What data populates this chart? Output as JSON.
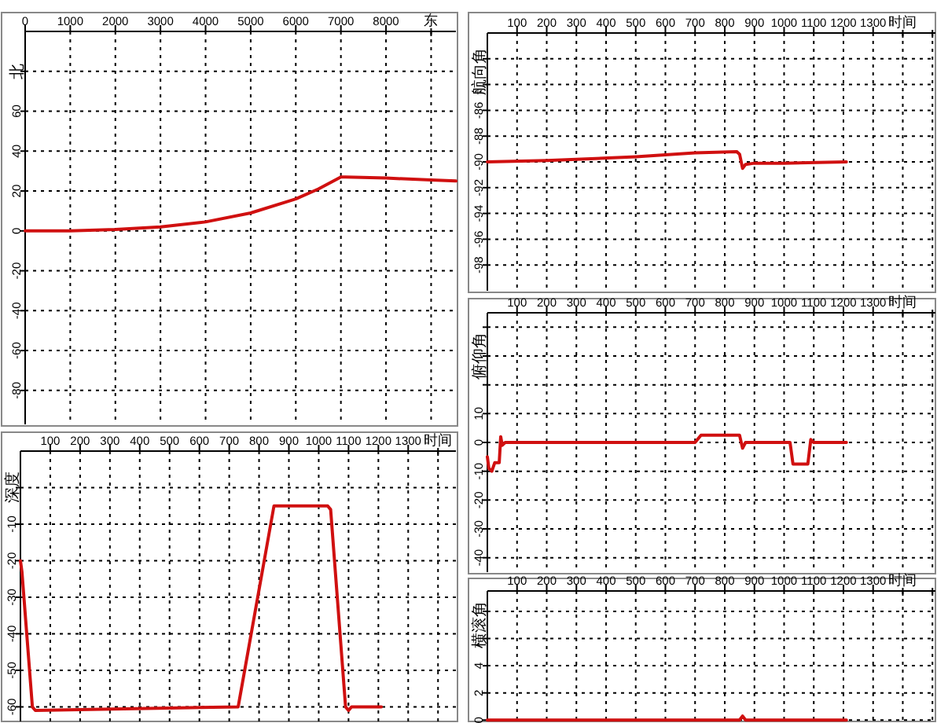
{
  "chart_data": [
    {
      "type": "line",
      "xlabel": "东",
      "ylabel": "北",
      "xlim": [
        0,
        9550
      ],
      "ylim": [
        -97,
        100
      ],
      "xticks": [
        0,
        1000,
        2000,
        3000,
        4000,
        5000,
        6000,
        7000,
        8000
      ],
      "yticks": [
        -80,
        -60,
        -40,
        -20,
        0,
        20,
        40,
        60,
        {
          "value": 80,
          "label": null
        }
      ],
      "grid": true,
      "x": [
        0,
        1000,
        2000,
        3000,
        4000,
        5000,
        6000,
        6500,
        7000,
        7100,
        8000,
        9000,
        9550
      ],
      "series": [
        {
          "color": "#d01010",
          "values": [
            0,
            0,
            0.7,
            2,
            4.5,
            9,
            16,
            21,
            27,
            27,
            26.5,
            25.5,
            25
          ]
        }
      ]
    },
    {
      "type": "line",
      "xlabel": "时间",
      "ylabel": "航向角",
      "xlim": [
        0,
        1510
      ],
      "ylim": [
        -100,
        -80
      ],
      "xticks": [
        100,
        200,
        300,
        400,
        500,
        600,
        700,
        800,
        900,
        1000,
        1100,
        1200,
        1300
      ],
      "yticks": [
        -98,
        -96,
        -94,
        -92,
        -90,
        -88,
        -86,
        {
          "value": -84,
          "label": null
        },
        {
          "value": -82,
          "label": null
        }
      ],
      "grid": true,
      "x": [
        0,
        200,
        500,
        700,
        840,
        850,
        860,
        870,
        900,
        1000,
        1210
      ],
      "series": [
        {
          "color": "#d01010",
          "values": [
            -90,
            -89.9,
            -89.6,
            -89.3,
            -89.2,
            -89.4,
            -90.5,
            -90.2,
            -90.1,
            -90.1,
            -90
          ]
        }
      ]
    },
    {
      "type": "line",
      "xlabel": "时间",
      "ylabel": "俯仰角",
      "xlim": [
        0,
        1510
      ],
      "ylim": [
        -45,
        45
      ],
      "xticks": [
        100,
        200,
        300,
        400,
        500,
        600,
        700,
        800,
        900,
        1000,
        1100,
        1200,
        1300
      ],
      "yticks": [
        -40,
        -30,
        -20,
        -10,
        0,
        10,
        {
          "value": 20,
          "label": null
        },
        {
          "value": 30,
          "label": null
        },
        {
          "value": 40,
          "label": null
        }
      ],
      "grid": true,
      "x": [
        0,
        5,
        15,
        25,
        40,
        45,
        50,
        60,
        700,
        720,
        850,
        860,
        870,
        1020,
        1030,
        1080,
        1090,
        1100,
        1210
      ],
      "series": [
        {
          "color": "#d01010",
          "values": [
            -5,
            -9,
            -10,
            -7,
            -7,
            2,
            -1,
            0,
            0,
            2.5,
            2.5,
            -2,
            0,
            0,
            -7.5,
            -7.5,
            1,
            0,
            0
          ]
        }
      ]
    },
    {
      "type": "line",
      "xlabel": "时间",
      "ylabel": "深度",
      "xlim": [
        0,
        1460
      ],
      "ylim": [
        -64,
        10
      ],
      "xticks": [
        100,
        200,
        300,
        400,
        500,
        600,
        700,
        800,
        900,
        1000,
        1100,
        1200,
        1300
      ],
      "yticks": [
        -60,
        -50,
        -40,
        -30,
        -20,
        -10,
        {
          "value": 0,
          "label": null
        }
      ],
      "grid": true,
      "x": [
        0,
        5,
        40,
        50,
        730,
        850,
        860,
        1030,
        1040,
        1090,
        1100,
        1110,
        1210
      ],
      "series": [
        {
          "color": "#d01010",
          "values": [
            -20,
            -23,
            -60,
            -61,
            -60,
            -5,
            -5,
            -5,
            -6,
            -60,
            -61,
            -60,
            -60
          ]
        }
      ]
    },
    {
      "type": "line",
      "xlabel": "时间",
      "ylabel": "横滚角",
      "xlim": [
        0,
        1510
      ],
      "ylim": [
        -0.1,
        9.5
      ],
      "xticks": [
        100,
        200,
        300,
        400,
        500,
        600,
        700,
        800,
        900,
        1000,
        1100,
        1200,
        1300
      ],
      "yticks": [
        0,
        2,
        4,
        {
          "value": 6,
          "label": null
        },
        {
          "value": 8,
          "label": null
        }
      ],
      "grid": true,
      "x": [
        0,
        850,
        860,
        870,
        1210
      ],
      "series": [
        {
          "color": "#d01010",
          "values": [
            0,
            0,
            0.3,
            0,
            0
          ]
        }
      ]
    }
  ]
}
